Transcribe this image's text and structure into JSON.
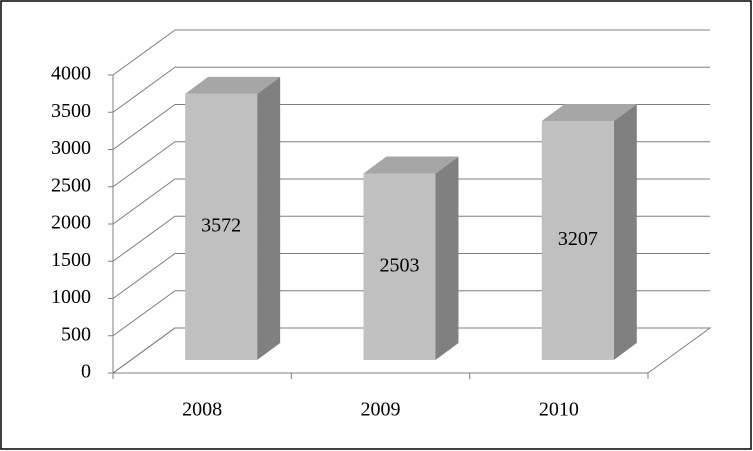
{
  "chart_data": {
    "type": "bar3d",
    "categories": [
      "2008",
      "2009",
      "2010"
    ],
    "values": [
      3572,
      2503,
      3207
    ],
    "color": "#c0c0c0",
    "side_color": "#808080",
    "top_color": "#a6a6a6",
    "ylim": [
      0,
      4000
    ],
    "yticks": [
      0,
      500,
      1000,
      1500,
      2000,
      2500,
      3000,
      3500,
      4000
    ],
    "grid": true,
    "data_labels": true
  }
}
